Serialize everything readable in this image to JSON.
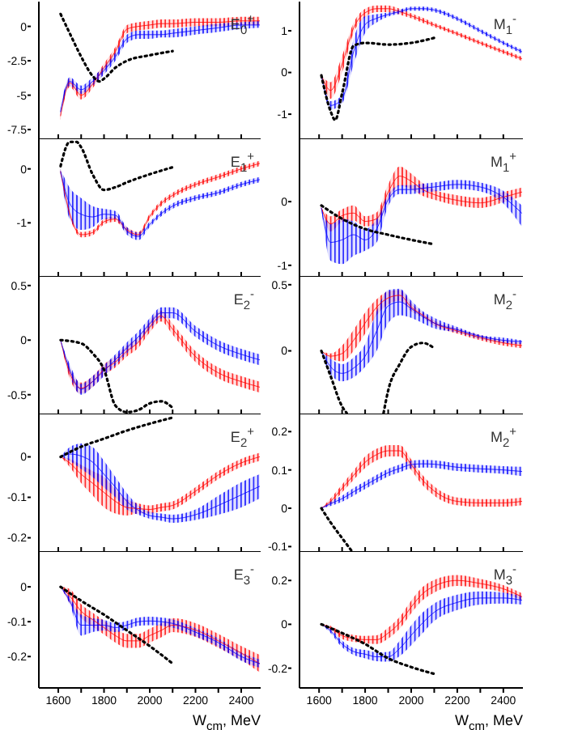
{
  "chart_data": [
    {
      "type": "line",
      "title": "E$_{0}$$^{+}$",
      "xlim": [
        1515,
        2485
      ],
      "xticks": [
        1600,
        1700,
        1800,
        1900,
        2000,
        2100,
        2200,
        2300,
        2400
      ],
      "ylim": [
        -8.2,
        1.8
      ],
      "yticks": [
        -7.5,
        -5,
        -2.5,
        0
      ],
      "tick_labels": "y",
      "series": [
        {
          "color": "#ff0000",
          "x": [
            1610,
            1650,
            1700,
            1750,
            1800,
            1850,
            1900,
            1950,
            2000,
            2050,
            2100,
            2200,
            2300,
            2400,
            2480
          ],
          "values": [
            -6.5,
            -4.1,
            -5.0,
            -4.2,
            -3.0,
            -1.8,
            -0.2,
            0,
            0.1,
            0.2,
            0.2,
            0.3,
            0.3,
            0.4,
            0.4
          ],
          "lower": [
            -6.8,
            -4.4,
            -5.3,
            -4.5,
            -3.3,
            -2.1,
            -0.5,
            -0.3,
            -0.2,
            -0.1,
            -0.1,
            0,
            0,
            0.1,
            0.1
          ],
          "upper": [
            -6.2,
            -3.8,
            -4.7,
            -3.9,
            -2.7,
            -1.5,
            0.1,
            0.3,
            0.4,
            0.5,
            0.5,
            0.6,
            0.6,
            0.7,
            0.7
          ]
        },
        {
          "color": "#0000ff",
          "x": [
            1610,
            1650,
            1700,
            1750,
            1800,
            1850,
            1900,
            1950,
            2000,
            2050,
            2100,
            2200,
            2300,
            2400,
            2480
          ],
          "values": [
            -6.2,
            -4.0,
            -4.6,
            -4.0,
            -3.2,
            -2.2,
            -0.9,
            -0.6,
            -0.6,
            -0.6,
            -0.5,
            -0.3,
            -0.1,
            0.1,
            0.1
          ],
          "lower": [
            -6.5,
            -4.3,
            -4.9,
            -4.3,
            -3.5,
            -2.5,
            -1.2,
            -0.9,
            -0.9,
            -0.8,
            -0.8,
            -0.6,
            -0.4,
            -0.2,
            -0.1
          ],
          "upper": [
            -5.9,
            -3.7,
            -4.3,
            -3.7,
            -2.9,
            -1.9,
            -0.6,
            -0.3,
            -0.3,
            -0.3,
            -0.2,
            0,
            0.2,
            0.3,
            0.4
          ]
        },
        {
          "color": "#000000",
          "line_style": "dotted",
          "x": [
            1610,
            1650,
            1700,
            1750,
            1780,
            1800,
            1850,
            1900,
            2000,
            2100
          ],
          "values": [
            0.9,
            -0.5,
            -2.2,
            -3.6,
            -4.0,
            -3.8,
            -3.0,
            -2.5,
            -2.1,
            -1.8
          ]
        }
      ]
    },
    {
      "type": "line",
      "title": "M$_{1}$$^{-}$",
      "xlim": [
        1515,
        2485
      ],
      "xticks": [
        1600,
        1700,
        1800,
        1900,
        2000,
        2100,
        2200,
        2300,
        2400
      ],
      "ylim": [
        -1.6,
        1.7
      ],
      "yticks": [
        -1,
        0,
        1
      ],
      "tick_labels": "y",
      "series": [
        {
          "color": "#ff0000",
          "x": [
            1610,
            1650,
            1700,
            1750,
            1800,
            1850,
            1900,
            1950,
            2000,
            2050,
            2100,
            2200,
            2300,
            2400,
            2480
          ],
          "values": [
            -0.07,
            -0.43,
            0.2,
            1.07,
            1.43,
            1.53,
            1.53,
            1.46,
            1.36,
            1.25,
            1.14,
            0.93,
            0.71,
            0.5,
            0.33
          ],
          "lower": [
            -0.07,
            -0.63,
            0.0,
            0.95,
            1.33,
            1.45,
            1.45,
            1.39,
            1.3,
            1.19,
            1.09,
            0.88,
            0.66,
            0.45,
            0.28
          ],
          "upper": [
            -0.07,
            -0.23,
            0.4,
            1.19,
            1.53,
            1.61,
            1.61,
            1.53,
            1.42,
            1.31,
            1.19,
            0.98,
            0.76,
            0.55,
            0.38
          ]
        },
        {
          "color": "#0000ff",
          "x": [
            1610,
            1650,
            1700,
            1750,
            1800,
            1850,
            1900,
            1950,
            2000,
            2050,
            2100,
            2200,
            2300,
            2400,
            2480
          ],
          "values": [
            -0.07,
            -0.79,
            -0.64,
            0.5,
            1.15,
            1.3,
            1.39,
            1.46,
            1.53,
            1.53,
            1.5,
            1.29,
            1.0,
            0.71,
            0.5
          ],
          "lower": [
            -0.07,
            -0.89,
            -0.74,
            0.2,
            0.95,
            1.2,
            1.34,
            1.41,
            1.48,
            1.48,
            1.45,
            1.24,
            0.95,
            0.66,
            0.45
          ],
          "upper": [
            -0.07,
            -0.69,
            -0.54,
            0.8,
            1.35,
            1.4,
            1.44,
            1.51,
            1.58,
            1.58,
            1.55,
            1.34,
            1.05,
            0.76,
            0.55
          ]
        },
        {
          "color": "#000000",
          "line_style": "dotted",
          "x": [
            1610,
            1650,
            1670,
            1700,
            1750,
            1800,
            1900,
            2000,
            2100
          ],
          "values": [
            -0.07,
            -0.93,
            -1.14,
            -0.5,
            0.64,
            0.71,
            0.67,
            0.71,
            0.83
          ]
        }
      ]
    },
    {
      "type": "line",
      "title": "E$_{1}$$^{+}$",
      "xlim": [
        1515,
        2485
      ],
      "xticks": [
        1600,
        1700,
        1800,
        1900,
        2000,
        2100,
        2200,
        2300,
        2400
      ],
      "ylim": [
        -2.0,
        0.55
      ],
      "yticks": [
        -1,
        0
      ],
      "tick_labels": "y",
      "series": [
        {
          "color": "#ff0000",
          "x": [
            1610,
            1650,
            1700,
            1750,
            1800,
            1850,
            1900,
            1950,
            2000,
            2050,
            2100,
            2200,
            2300,
            2400,
            2480
          ],
          "values": [
            -0.05,
            -0.83,
            -1.22,
            -1.18,
            -0.98,
            -0.93,
            -1.13,
            -1.22,
            -0.88,
            -0.64,
            -0.49,
            -0.29,
            -0.15,
            0,
            0.1
          ],
          "lower": [
            -0.1,
            -0.88,
            -1.27,
            -1.23,
            -1.03,
            -0.98,
            -1.18,
            -1.27,
            -0.93,
            -0.69,
            -0.54,
            -0.34,
            -0.2,
            -0.05,
            0.05
          ],
          "upper": [
            0,
            -0.78,
            -1.17,
            -1.13,
            -0.93,
            -0.88,
            -1.08,
            -1.17,
            -0.83,
            -0.59,
            -0.44,
            -0.24,
            -0.1,
            0.05,
            0.15
          ]
        },
        {
          "color": "#0000ff",
          "x": [
            1610,
            1650,
            1700,
            1750,
            1800,
            1850,
            1900,
            1950,
            2000,
            2050,
            2100,
            2200,
            2300,
            2400,
            2480
          ],
          "values": [
            -0.05,
            -0.64,
            -0.84,
            -0.89,
            -0.84,
            -0.86,
            -1.15,
            -1.25,
            -1.03,
            -0.83,
            -0.69,
            -0.54,
            -0.44,
            -0.29,
            -0.2
          ],
          "lower": [
            -0.1,
            -0.93,
            -1.13,
            -1.08,
            -0.93,
            -0.93,
            -1.22,
            -1.32,
            -1.08,
            -0.88,
            -0.74,
            -0.59,
            -0.49,
            -0.34,
            -0.25
          ],
          "upper": [
            0,
            -0.35,
            -0.54,
            -0.69,
            -0.74,
            -0.78,
            -1.08,
            -1.18,
            -0.98,
            -0.78,
            -0.64,
            -0.49,
            -0.39,
            -0.24,
            -0.15
          ]
        },
        {
          "color": "#000000",
          "line_style": "dotted",
          "x": [
            1610,
            1650,
            1680,
            1700,
            1750,
            1800,
            1850,
            1900,
            2000,
            2100
          ],
          "values": [
            0.05,
            0.5,
            0.5,
            0.4,
            -0.1,
            -0.39,
            -0.34,
            -0.25,
            -0.1,
            0.03
          ]
        }
      ]
    },
    {
      "type": "line",
      "title": "M$_{1}$$^{+}$",
      "xlim": [
        1515,
        2485
      ],
      "xticks": [
        1600,
        1700,
        1800,
        1900,
        2000,
        2100,
        2200,
        2300,
        2400
      ],
      "ylim": [
        -1.18,
        0.98
      ],
      "yticks": [
        -1,
        0
      ],
      "tick_labels": "y",
      "series": [
        {
          "color": "#ff0000",
          "x": [
            1610,
            1650,
            1700,
            1750,
            1800,
            1850,
            1900,
            1950,
            2000,
            2050,
            2100,
            2200,
            2300,
            2400,
            2480
          ],
          "values": [
            -0.1,
            -0.35,
            -0.22,
            -0.18,
            -0.31,
            -0.27,
            0.15,
            0.4,
            0.32,
            0.19,
            0.11,
            0.02,
            -0.02,
            0.07,
            0.15
          ],
          "lower": [
            -0.1,
            -0.47,
            -0.32,
            -0.3,
            -0.39,
            -0.37,
            0.03,
            0.25,
            0.2,
            0.09,
            0.03,
            -0.06,
            -0.1,
            -0.01,
            0.08
          ],
          "upper": [
            -0.1,
            -0.23,
            -0.12,
            -0.06,
            -0.23,
            -0.17,
            0.27,
            0.55,
            0.44,
            0.29,
            0.19,
            0.1,
            0.06,
            0.15,
            0.22
          ]
        },
        {
          "color": "#0000ff",
          "x": [
            1610,
            1650,
            1700,
            1750,
            1800,
            1850,
            1900,
            1950,
            2000,
            2050,
            2100,
            2200,
            2300,
            2400,
            2480
          ],
          "values": [
            -0.1,
            -0.64,
            -0.6,
            -0.52,
            -0.6,
            -0.43,
            0.03,
            0.19,
            0.19,
            0.21,
            0.23,
            0.27,
            0.23,
            0.07,
            -0.18
          ],
          "lower": [
            -0.1,
            -0.93,
            -0.98,
            -0.85,
            -0.77,
            -0.64,
            -0.07,
            0.12,
            0.12,
            0.14,
            0.16,
            0.2,
            0.16,
            -0.03,
            -0.39
          ],
          "upper": [
            -0.1,
            -0.35,
            -0.27,
            -0.31,
            -0.43,
            -0.27,
            0.11,
            0.26,
            0.26,
            0.28,
            0.3,
            0.34,
            0.3,
            0.17,
            -0.06
          ]
        },
        {
          "color": "#000000",
          "line_style": "dotted",
          "x": [
            1610,
            1700,
            1800,
            1900,
            2000,
            2100
          ],
          "values": [
            -0.06,
            -0.27,
            -0.43,
            -0.52,
            -0.6,
            -0.67
          ]
        }
      ]
    },
    {
      "type": "line",
      "title": "E$_{2}$$^{-}$",
      "xlim": [
        1515,
        2485
      ],
      "xticks": [
        1600,
        1700,
        1800,
        1900,
        2000,
        2100,
        2200,
        2300,
        2400
      ],
      "ylim": [
        -0.68,
        0.58
      ],
      "yticks": [
        -0.5,
        0,
        0.5
      ],
      "tick_labels": "y",
      "series": [
        {
          "color": "#ff0000",
          "x": [
            1610,
            1650,
            1700,
            1750,
            1800,
            1850,
            1900,
            1950,
            2000,
            2050,
            2100,
            2200,
            2300,
            2400,
            2480
          ],
          "values": [
            0,
            -0.3,
            -0.44,
            -0.38,
            -0.27,
            -0.2,
            -0.1,
            -0.02,
            0.12,
            0.22,
            0.1,
            -0.15,
            -0.3,
            -0.38,
            -0.43
          ],
          "lower": [
            0,
            -0.35,
            -0.49,
            -0.43,
            -0.32,
            -0.25,
            -0.15,
            -0.07,
            0.07,
            0.17,
            0.05,
            -0.2,
            -0.35,
            -0.43,
            -0.48
          ],
          "upper": [
            0,
            -0.25,
            -0.39,
            -0.33,
            -0.22,
            -0.15,
            -0.05,
            0.03,
            0.17,
            0.27,
            0.15,
            -0.1,
            -0.25,
            -0.33,
            -0.38
          ]
        },
        {
          "color": "#0000ff",
          "x": [
            1610,
            1650,
            1700,
            1750,
            1800,
            1850,
            1900,
            1950,
            2000,
            2050,
            2100,
            2200,
            2300,
            2400,
            2480
          ],
          "values": [
            0,
            -0.27,
            -0.45,
            -0.38,
            -0.28,
            -0.18,
            -0.07,
            0.03,
            0.15,
            0.25,
            0.25,
            0.08,
            -0.05,
            -0.13,
            -0.18
          ],
          "lower": [
            0,
            -0.32,
            -0.5,
            -0.43,
            -0.33,
            -0.23,
            -0.12,
            -0.02,
            0.1,
            0.2,
            0.2,
            0.03,
            -0.1,
            -0.18,
            -0.23
          ],
          "upper": [
            0,
            -0.22,
            -0.4,
            -0.33,
            -0.23,
            -0.13,
            -0.02,
            0.08,
            0.2,
            0.3,
            0.3,
            0.13,
            0,
            -0.08,
            -0.13
          ]
        },
        {
          "color": "#000000",
          "line_style": "dotted",
          "x": [
            1610,
            1700,
            1750,
            1800,
            1850,
            1900,
            1950,
            2000,
            2050,
            2100
          ],
          "values": [
            0,
            -0.03,
            -0.12,
            -0.27,
            -0.6,
            -0.66,
            -0.64,
            -0.58,
            -0.56,
            -0.62
          ]
        }
      ]
    },
    {
      "type": "line",
      "title": "M$_{2}$$^{-}$",
      "xlim": [
        1515,
        2485
      ],
      "xticks": [
        1600,
        1700,
        1800,
        1900,
        2000,
        2100,
        2200,
        2300,
        2400
      ],
      "ylim": [
        -0.48,
        0.56
      ],
      "yticks": [
        0,
        0.5
      ],
      "tick_labels": "y",
      "series": [
        {
          "color": "#ff0000",
          "x": [
            1610,
            1650,
            1700,
            1750,
            1800,
            1850,
            1900,
            1950,
            2000,
            2050,
            2100,
            2200,
            2300,
            2400,
            2480
          ],
          "values": [
            0,
            -0.04,
            -0.02,
            0.08,
            0.21,
            0.33,
            0.4,
            0.42,
            0.33,
            0.27,
            0.21,
            0.15,
            0.1,
            0.06,
            0.04
          ],
          "lower": [
            0,
            -0.06,
            -0.08,
            0.0,
            0.13,
            0.27,
            0.35,
            0.38,
            0.3,
            0.25,
            0.19,
            0.13,
            0.08,
            0.04,
            0.02
          ],
          "upper": [
            0,
            -0.02,
            0.04,
            0.16,
            0.29,
            0.39,
            0.45,
            0.46,
            0.36,
            0.29,
            0.23,
            0.17,
            0.12,
            0.08,
            0.06
          ]
        },
        {
          "color": "#0000ff",
          "x": [
            1610,
            1650,
            1700,
            1750,
            1800,
            1850,
            1900,
            1950,
            2000,
            2050,
            2100,
            2200,
            2300,
            2400,
            2480
          ],
          "values": [
            0,
            -0.12,
            -0.17,
            -0.13,
            -0.04,
            0.15,
            0.34,
            0.37,
            0.32,
            0.26,
            0.21,
            0.16,
            0.11,
            0.08,
            0.07
          ],
          "lower": [
            0,
            -0.18,
            -0.23,
            -0.2,
            -0.12,
            0,
            0.21,
            0.27,
            0.25,
            0.21,
            0.17,
            0.14,
            0.09,
            0.06,
            0.05
          ],
          "upper": [
            0,
            -0.06,
            -0.1,
            -0.05,
            0.05,
            0.3,
            0.46,
            0.47,
            0.38,
            0.3,
            0.25,
            0.18,
            0.12,
            0.1,
            0.08
          ]
        },
        {
          "color": "#000000",
          "line_style": "dotted",
          "x": [
            1610,
            1650,
            1700,
            1720,
            1800,
            1880,
            1900,
            1950,
            2000,
            2050,
            2100
          ],
          "values": [
            0,
            -0.19,
            -0.42,
            -0.47,
            null,
            -0.47,
            -0.3,
            -0.1,
            0.03,
            0.06,
            0.02
          ]
        }
      ]
    },
    {
      "type": "line",
      "title": "E$_{2}$$^{+}$",
      "xlim": [
        1515,
        2485
      ],
      "xticks": [
        1600,
        1700,
        1800,
        1900,
        2000,
        2100,
        2200,
        2300,
        2400
      ],
      "ylim": [
        -0.235,
        0.105
      ],
      "yticks": [
        -0.2,
        -0.1,
        0
      ],
      "tick_labels": "y",
      "series": [
        {
          "color": "#ff0000",
          "x": [
            1610,
            1650,
            1700,
            1750,
            1800,
            1850,
            1900,
            1950,
            2000,
            2050,
            2100,
            2200,
            2300,
            2400,
            2480
          ],
          "values": [
            0,
            -0.015,
            -0.043,
            -0.065,
            -0.088,
            -0.11,
            -0.125,
            -0.128,
            -0.13,
            -0.125,
            -0.12,
            -0.085,
            -0.045,
            -0.015,
            0
          ],
          "lower": [
            0,
            -0.025,
            -0.065,
            -0.095,
            -0.125,
            -0.14,
            -0.145,
            -0.14,
            -0.14,
            -0.135,
            -0.13,
            -0.095,
            -0.055,
            -0.025,
            -0.01
          ],
          "upper": [
            0,
            -0.005,
            -0.02,
            -0.035,
            -0.05,
            -0.08,
            -0.105,
            -0.115,
            -0.12,
            -0.115,
            -0.11,
            -0.075,
            -0.035,
            -0.005,
            0.01
          ]
        },
        {
          "color": "#0000ff",
          "x": [
            1610,
            1650,
            1700,
            1750,
            1800,
            1850,
            1900,
            1950,
            2000,
            2050,
            2100,
            2200,
            2300,
            2400,
            2480
          ],
          "values": [
            0,
            0.007,
            0.002,
            -0.013,
            -0.043,
            -0.075,
            -0.11,
            -0.132,
            -0.145,
            -0.149,
            -0.153,
            -0.143,
            -0.12,
            -0.094,
            -0.073
          ],
          "lower": [
            0,
            -0.01,
            -0.03,
            -0.05,
            -0.076,
            -0.1,
            -0.13,
            -0.143,
            -0.153,
            -0.158,
            -0.163,
            -0.156,
            -0.143,
            -0.125,
            -0.103
          ],
          "upper": [
            0,
            0.024,
            0.033,
            0.024,
            -0.01,
            -0.05,
            -0.09,
            -0.12,
            -0.136,
            -0.14,
            -0.143,
            -0.13,
            -0.096,
            -0.063,
            -0.043
          ]
        },
        {
          "color": "#000000",
          "line_style": "dotted",
          "x": [
            1610,
            1700,
            1800,
            1900,
            2000,
            2100
          ],
          "values": [
            0,
            0.025,
            0.045,
            0.065,
            0.082,
            0.097
          ]
        }
      ]
    },
    {
      "type": "line",
      "title": "M$_{2}$$^{+}$",
      "xlim": [
        1515,
        2485
      ],
      "xticks": [
        1600,
        1700,
        1800,
        1900,
        2000,
        2100,
        2200,
        2300,
        2400
      ],
      "ylim": [
        -0.114,
        0.245
      ],
      "yticks": [
        -0.1,
        0,
        0.1,
        0.2
      ],
      "tick_labels": "y",
      "series": [
        {
          "color": "#ff0000",
          "x": [
            1610,
            1650,
            1700,
            1750,
            1800,
            1850,
            1900,
            1950,
            2000,
            2050,
            2100,
            2200,
            2300,
            2400,
            2480
          ],
          "values": [
            0,
            0.018,
            0.052,
            0.086,
            0.12,
            0.14,
            0.15,
            0.15,
            0.114,
            0.073,
            0.045,
            0.018,
            0.014,
            0.014,
            0.018
          ],
          "lower": [
            0,
            0.01,
            0.042,
            0.074,
            0.105,
            0.125,
            0.135,
            0.135,
            0.1,
            0.06,
            0.033,
            0.008,
            0.004,
            0.004,
            0.008
          ],
          "upper": [
            0,
            0.026,
            0.062,
            0.098,
            0.135,
            0.155,
            0.165,
            0.165,
            0.128,
            0.086,
            0.057,
            0.028,
            0.024,
            0.024,
            0.028
          ]
        },
        {
          "color": "#0000ff",
          "x": [
            1610,
            1650,
            1700,
            1750,
            1800,
            1850,
            1900,
            1950,
            2000,
            2050,
            2100,
            2200,
            2300,
            2400,
            2480
          ],
          "values": [
            0,
            0.012,
            0.025,
            0.043,
            0.06,
            0.077,
            0.093,
            0.104,
            0.114,
            0.116,
            0.115,
            0.107,
            0.103,
            0.1,
            0.096
          ],
          "lower": [
            0,
            0.006,
            0.017,
            0.033,
            0.05,
            0.067,
            0.083,
            0.094,
            0.104,
            0.106,
            0.105,
            0.097,
            0.093,
            0.09,
            0.084
          ],
          "upper": [
            0,
            0.018,
            0.033,
            0.053,
            0.07,
            0.087,
            0.103,
            0.114,
            0.124,
            0.126,
            0.125,
            0.117,
            0.113,
            0.11,
            0.108
          ]
        },
        {
          "color": "#000000",
          "line_style": "dotted",
          "x": [
            1610,
            1650,
            1700,
            1740
          ],
          "values": [
            0,
            -0.037,
            -0.078,
            -0.11
          ]
        }
      ]
    },
    {
      "type": "line",
      "title": "E$_{3}$$^{-}$",
      "xlabel": "W$_{cm}$, MeV",
      "xlim": [
        1515,
        2485
      ],
      "xticks": [
        {
          "value": 1600,
          "label": "1600"
        },
        {
          "value": 1700,
          "label": null
        },
        {
          "value": 1800,
          "label": "1800"
        },
        {
          "value": 1900,
          "label": null
        },
        {
          "value": 2000,
          "label": "2000"
        },
        {
          "value": 2100,
          "label": null
        },
        {
          "value": 2200,
          "label": "2200"
        },
        {
          "value": 2300,
          "label": null
        },
        {
          "value": 2400,
          "label": "2400"
        }
      ],
      "ylim": [
        -0.29,
        0.1
      ],
      "yticks": [
        -0.2,
        -0.1,
        0
      ],
      "series": [
        {
          "color": "#ff0000",
          "x": [
            1610,
            1650,
            1700,
            1750,
            1800,
            1850,
            1900,
            1950,
            2000,
            2050,
            2100,
            2200,
            2300,
            2400,
            2480
          ],
          "values": [
            0,
            -0.026,
            -0.07,
            -0.094,
            -0.117,
            -0.14,
            -0.155,
            -0.155,
            -0.14,
            -0.125,
            -0.11,
            -0.124,
            -0.155,
            -0.19,
            -0.22
          ],
          "lower": [
            0,
            -0.046,
            -0.09,
            -0.114,
            -0.137,
            -0.16,
            -0.175,
            -0.175,
            -0.16,
            -0.145,
            -0.13,
            -0.144,
            -0.175,
            -0.21,
            -0.245
          ],
          "upper": [
            0,
            -0.006,
            -0.05,
            -0.074,
            -0.097,
            -0.12,
            -0.135,
            -0.135,
            -0.12,
            -0.105,
            -0.09,
            -0.104,
            -0.135,
            -0.17,
            -0.195
          ]
        },
        {
          "color": "#0000ff",
          "x": [
            1610,
            1650,
            1700,
            1750,
            1800,
            1850,
            1900,
            1950,
            2000,
            2050,
            2100,
            2200,
            2300,
            2400,
            2480
          ],
          "values": [
            0,
            -0.04,
            -0.11,
            -0.11,
            -0.11,
            -0.117,
            -0.11,
            -0.1,
            -0.098,
            -0.1,
            -0.105,
            -0.13,
            -0.16,
            -0.2,
            -0.22
          ],
          "lower": [
            0,
            -0.05,
            -0.14,
            -0.13,
            -0.125,
            -0.13,
            -0.122,
            -0.112,
            -0.11,
            -0.112,
            -0.117,
            -0.142,
            -0.172,
            -0.212,
            -0.232
          ],
          "upper": [
            0,
            -0.03,
            -0.08,
            -0.09,
            -0.095,
            -0.104,
            -0.098,
            -0.088,
            -0.086,
            -0.088,
            -0.093,
            -0.118,
            -0.148,
            -0.188,
            -0.208
          ]
        },
        {
          "color": "#000000",
          "line_style": "dotted",
          "x": [
            1610,
            1700,
            1800,
            1900,
            2000,
            2100
          ],
          "values": [
            0,
            -0.04,
            -0.08,
            -0.125,
            -0.17,
            -0.22
          ]
        }
      ]
    },
    {
      "type": "line",
      "title": "M$_{3}$$^{-}$",
      "xlabel": "W$_{cm}$, MeV",
      "xlim": [
        1515,
        2485
      ],
      "xticks": [
        {
          "value": 1600,
          "label": "1600"
        },
        {
          "value": 1700,
          "label": null
        },
        {
          "value": 1800,
          "label": "1800"
        },
        {
          "value": 1900,
          "label": null
        },
        {
          "value": 2000,
          "label": "2000"
        },
        {
          "value": 2100,
          "label": null
        },
        {
          "value": 2200,
          "label": "2200"
        },
        {
          "value": 2300,
          "label": null
        },
        {
          "value": 2400,
          "label": "2400"
        }
      ],
      "ylim": [
        -0.29,
        0.33
      ],
      "yticks": [
        -0.2,
        0,
        0.2
      ],
      "series": [
        {
          "color": "#ff0000",
          "x": [
            1610,
            1650,
            1700,
            1750,
            1800,
            1850,
            1900,
            1950,
            2000,
            2050,
            2100,
            2200,
            2300,
            2400,
            2480
          ],
          "values": [
            0,
            -0.017,
            -0.052,
            -0.064,
            -0.07,
            -0.07,
            -0.04,
            0.007,
            0.079,
            0.14,
            0.174,
            0.2,
            0.186,
            0.162,
            0.126
          ],
          "lower": [
            0,
            -0.027,
            -0.067,
            -0.08,
            -0.087,
            -0.09,
            -0.065,
            -0.02,
            0.05,
            0.11,
            0.145,
            0.175,
            0.165,
            0.145,
            0.11
          ],
          "upper": [
            0,
            -0.007,
            -0.037,
            -0.048,
            -0.053,
            -0.05,
            -0.015,
            0.034,
            0.108,
            0.17,
            0.203,
            0.225,
            0.207,
            0.179,
            0.142
          ]
        },
        {
          "color": "#0000ff",
          "x": [
            1610,
            1650,
            1700,
            1750,
            1800,
            1850,
            1900,
            1950,
            2000,
            2050,
            2100,
            2200,
            2300,
            2400,
            2480
          ],
          "values": [
            0,
            -0.03,
            -0.09,
            -0.124,
            -0.136,
            -0.148,
            -0.148,
            -0.11,
            -0.05,
            0.007,
            0.055,
            0.1,
            0.12,
            0.12,
            0.11
          ],
          "lower": [
            0,
            -0.04,
            -0.105,
            -0.14,
            -0.155,
            -0.168,
            -0.17,
            -0.145,
            -0.095,
            -0.04,
            0.015,
            0.065,
            0.09,
            0.095,
            0.09
          ],
          "upper": [
            0,
            -0.02,
            -0.075,
            -0.108,
            -0.117,
            -0.128,
            -0.126,
            -0.075,
            -0.005,
            0.054,
            0.095,
            0.135,
            0.15,
            0.145,
            0.13
          ]
        },
        {
          "color": "#000000",
          "line_style": "dotted",
          "x": [
            1610,
            1700,
            1800,
            1900,
            2000,
            2100
          ],
          "values": [
            0,
            -0.04,
            -0.09,
            -0.155,
            -0.195,
            -0.226
          ]
        }
      ]
    }
  ]
}
